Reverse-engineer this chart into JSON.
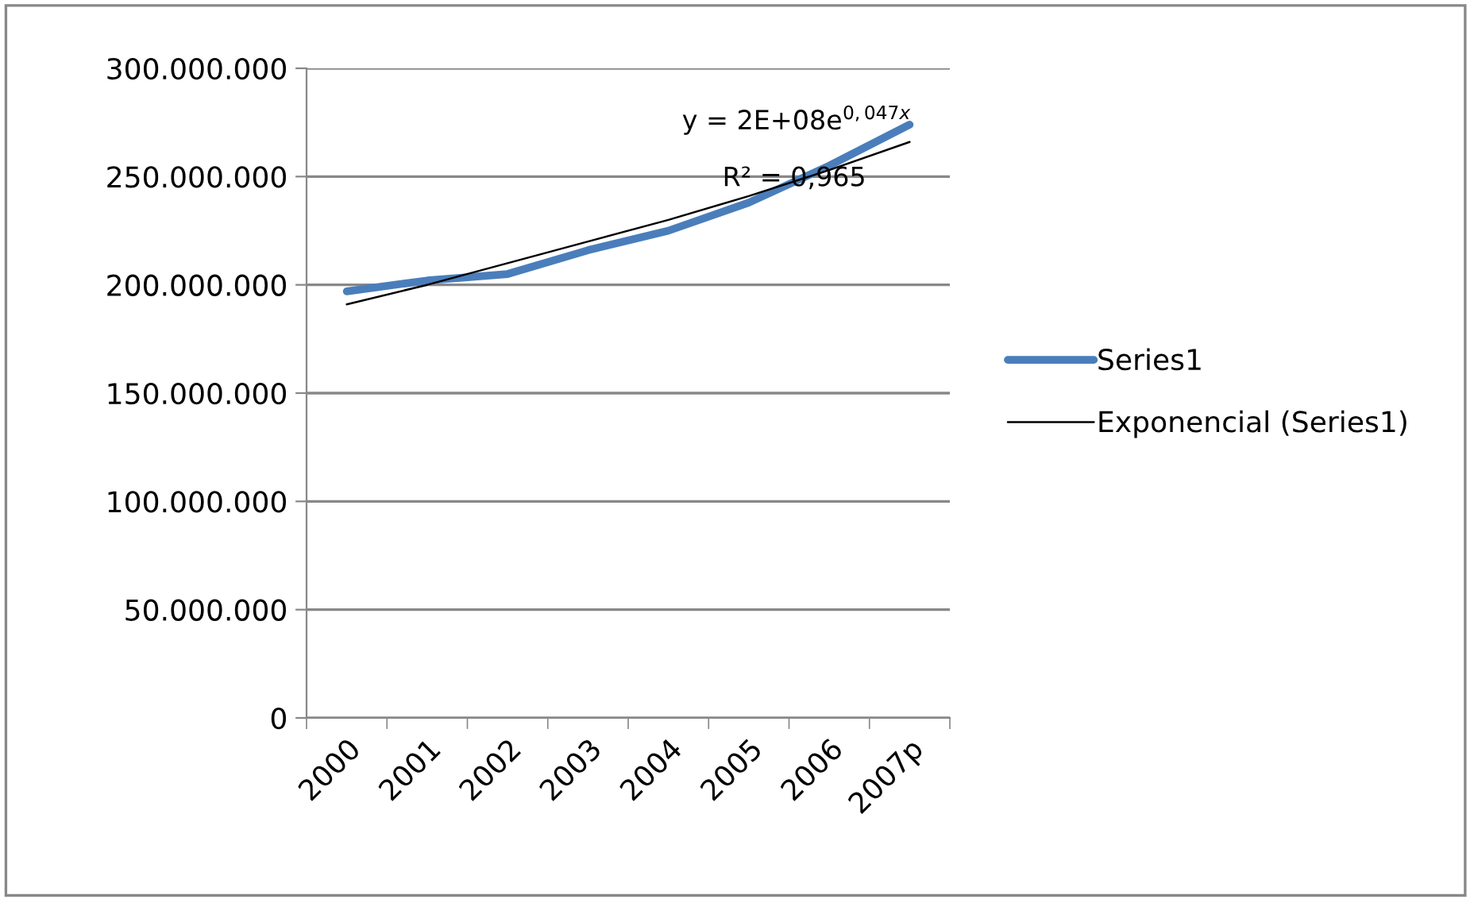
{
  "chart_data": {
    "type": "line",
    "categories": [
      "2000",
      "2001",
      "2002",
      "2003",
      "2004",
      "2005",
      "2006",
      "2007p"
    ],
    "series": [
      {
        "name": "Series1",
        "color": "#4a7ebb",
        "values": [
          197000000,
          202000000,
          205000000,
          216000000,
          225000000,
          238000000,
          255000000,
          274000000
        ]
      },
      {
        "name": "Exponencial (Series1)",
        "color": "#000000",
        "values": [
          191000000,
          200000000,
          210000000,
          220000000,
          230000000,
          241000000,
          253000000,
          266000000
        ]
      }
    ],
    "ylim": [
      0,
      300000000
    ],
    "yticks": [
      0,
      {
        "value": 50000000,
        "label": "50.000.000"
      },
      {
        "value": 100000000,
        "label": "100.000.000"
      },
      {
        "value": 150000000,
        "label": "150.000.000"
      },
      {
        "value": 200000000,
        "label": "200.000.000"
      },
      {
        "value": 250000000,
        "label": "250.000.000"
      },
      {
        "value": 300000000,
        "label": "300.000.000"
      }
    ],
    "annotations": [
      "y = 2E+08e$^{0,047x}$",
      "R² = 0,965"
    ],
    "grid": "y",
    "legend": "right",
    "marker": "none",
    "line_style": "solid"
  }
}
